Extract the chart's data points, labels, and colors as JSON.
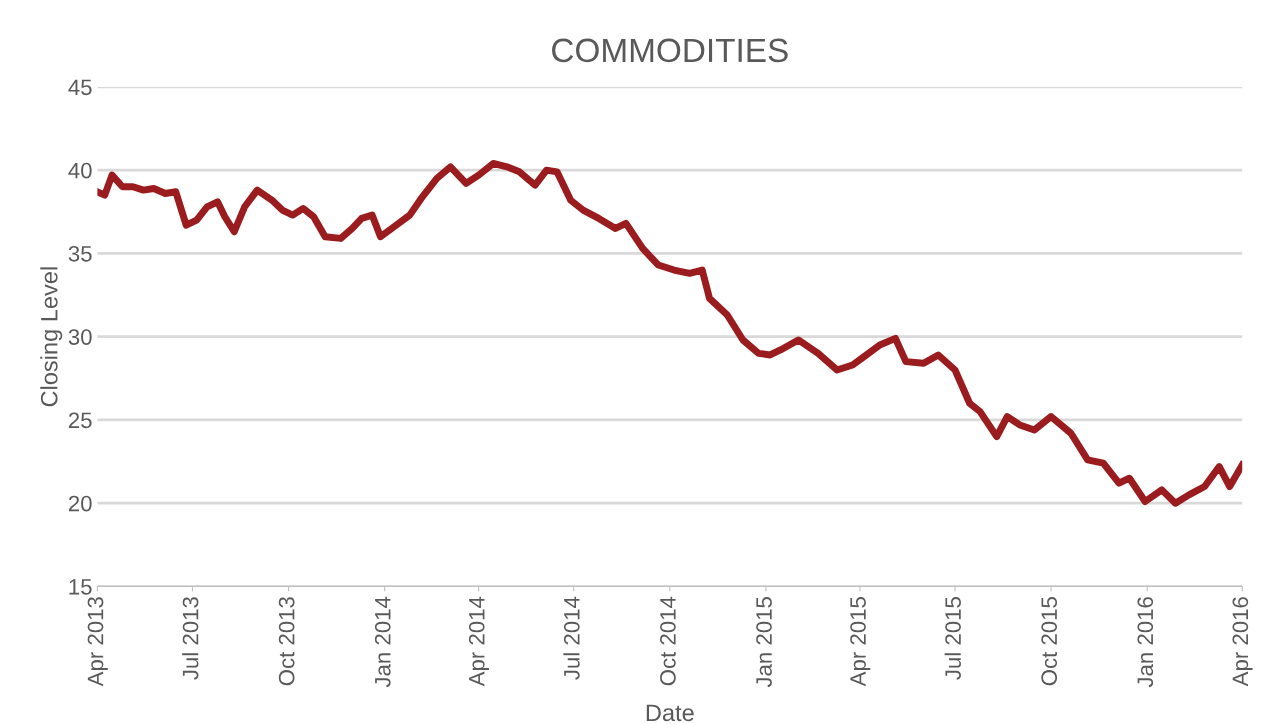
{
  "chart_data": {
    "type": "line",
    "title": "COMMODITIES",
    "xlabel": "Date",
    "ylabel": "Closing Level",
    "x": [
      "2013-04-01",
      "2013-04-08",
      "2013-04-15",
      "2013-04-25",
      "2013-05-05",
      "2013-05-15",
      "2013-05-25",
      "2013-06-05",
      "2013-06-15",
      "2013-06-25",
      "2013-07-05",
      "2013-07-15",
      "2013-07-25",
      "2013-08-01",
      "2013-08-10",
      "2013-08-20",
      "2013-09-01",
      "2013-09-15",
      "2013-09-25",
      "2013-10-05",
      "2013-10-15",
      "2013-10-25",
      "2013-11-05",
      "2013-11-20",
      "2013-12-01",
      "2013-12-10",
      "2013-12-20",
      "2013-12-28",
      "2014-01-10",
      "2014-01-25",
      "2014-02-05",
      "2014-02-20",
      "2014-03-05",
      "2014-03-20",
      "2014-04-01",
      "2014-04-15",
      "2014-04-28",
      "2014-05-10",
      "2014-05-25",
      "2014-06-05",
      "2014-06-15",
      "2014-06-28",
      "2014-07-10",
      "2014-07-25",
      "2014-08-10",
      "2014-08-20",
      "2014-09-05",
      "2014-09-20",
      "2014-10-05",
      "2014-10-20",
      "2014-11-01",
      "2014-11-08",
      "2014-11-25",
      "2014-12-10",
      "2014-12-25",
      "2015-01-05",
      "2015-01-15",
      "2015-02-01",
      "2015-02-20",
      "2015-03-10",
      "2015-03-25",
      "2015-04-05",
      "2015-04-20",
      "2015-05-05",
      "2015-05-15",
      "2015-06-01",
      "2015-06-15",
      "2015-07-01",
      "2015-07-15",
      "2015-07-25",
      "2015-08-10",
      "2015-08-20",
      "2015-09-01",
      "2015-09-15",
      "2015-10-01",
      "2015-10-20",
      "2015-11-05",
      "2015-11-20",
      "2015-12-05",
      "2015-12-15",
      "2015-12-30",
      "2016-01-15",
      "2016-01-28",
      "2016-02-10",
      "2016-02-25",
      "2016-03-10",
      "2016-03-20",
      "2016-04-01"
    ],
    "series": [
      {
        "color": "#9b1c1f",
        "values": [
          38.7,
          38.5,
          39.7,
          39.0,
          39.0,
          38.8,
          38.9,
          38.6,
          38.7,
          36.7,
          37.0,
          37.8,
          38.1,
          37.2,
          36.3,
          37.8,
          38.8,
          38.2,
          37.6,
          37.3,
          37.7,
          37.2,
          36.0,
          35.9,
          36.5,
          37.1,
          37.3,
          36.0,
          36.6,
          37.3,
          38.3,
          39.5,
          40.2,
          39.2,
          39.7,
          40.4,
          40.2,
          39.9,
          39.1,
          40.0,
          39.9,
          38.2,
          37.6,
          37.1,
          36.5,
          36.8,
          35.3,
          34.3,
          34.0,
          33.8,
          34.0,
          32.3,
          31.3,
          29.8,
          29.0,
          28.9,
          29.2,
          29.8,
          29.0,
          28.0,
          28.3,
          28.8,
          29.5,
          29.9,
          28.5,
          28.4,
          28.9,
          28.0,
          26.0,
          25.5,
          24.0,
          25.2,
          24.7,
          24.4,
          25.2,
          24.2,
          22.6,
          22.4,
          21.2,
          21.5,
          20.1,
          20.8,
          20.0,
          20.5,
          21.0,
          22.2,
          21.0,
          22.3
        ]
      }
    ],
    "xlim": [
      "2013-04-01",
      "2016-04-01"
    ],
    "xticks": [
      {
        "value": "2013-04-01",
        "label": "Apr 2013"
      },
      {
        "value": "2013-07-01",
        "label": "Jul 2013"
      },
      {
        "value": "2013-10-01",
        "label": "Oct 2013"
      },
      {
        "value": "2014-01-01",
        "label": "Jan 2014"
      },
      {
        "value": "2014-04-01",
        "label": "Apr 2014"
      },
      {
        "value": "2014-07-01",
        "label": "Jul 2014"
      },
      {
        "value": "2014-10-01",
        "label": "Oct 2014"
      },
      {
        "value": "2015-01-01",
        "label": "Jan 2015"
      },
      {
        "value": "2015-04-01",
        "label": "Apr 2015"
      },
      {
        "value": "2015-07-01",
        "label": "Jul 2015"
      },
      {
        "value": "2015-10-01",
        "label": "Oct 2015"
      },
      {
        "value": "2016-01-01",
        "label": "Jan 2016"
      },
      {
        "value": "2016-04-01",
        "label": "Apr 2016"
      }
    ],
    "ylim": [
      15,
      45
    ],
    "yticks": [
      15,
      20,
      25,
      30,
      35,
      40,
      45
    ],
    "grid": "y",
    "line_style": "solid",
    "marker": "none"
  }
}
